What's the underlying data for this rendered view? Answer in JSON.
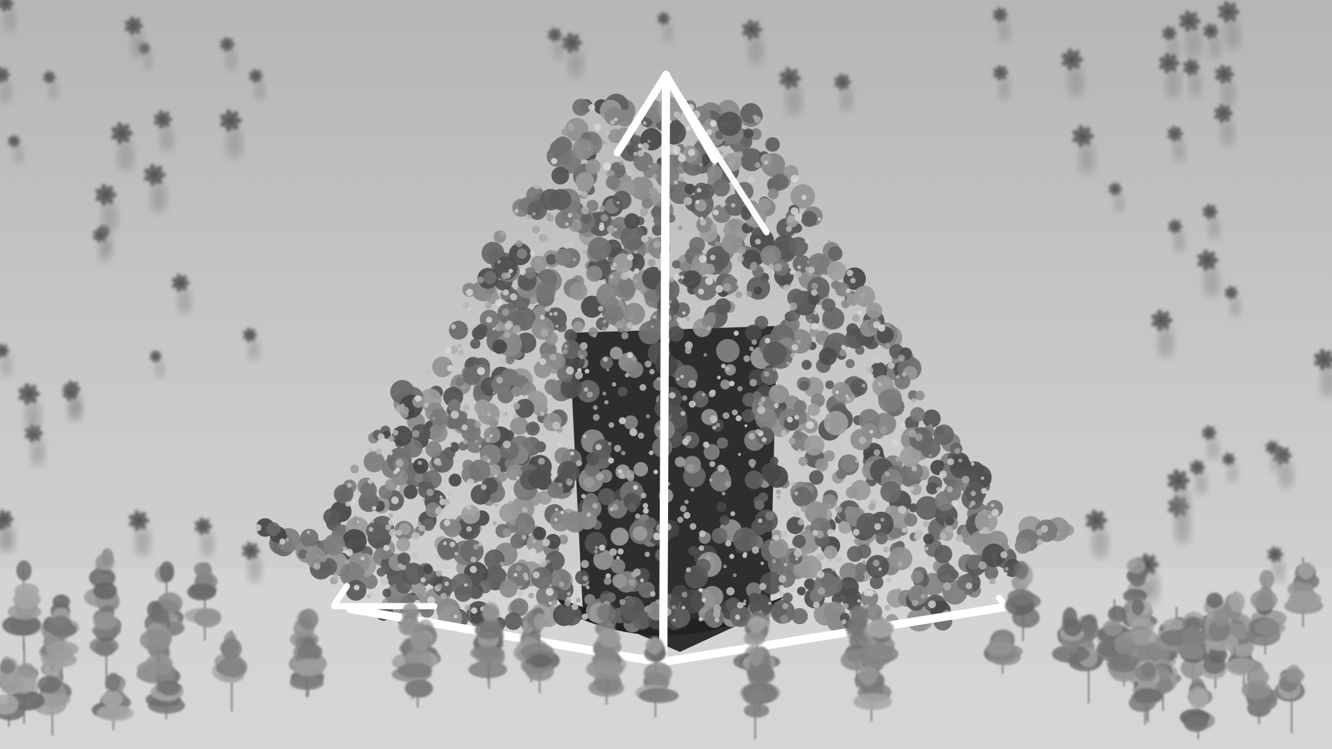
{
  "scene": {
    "subject": "tree-enclosed-pyramid",
    "palette": {
      "sky_top": "#b9b9b9",
      "sky_mid": "#c9c9c9",
      "ground": "#d2d2d2",
      "canopy_dark": "#4a4a4a",
      "canopy_mid": "#6e6e6e",
      "canopy_light": "#9a9a9a",
      "core_dark": "#2c2c2c",
      "sapling": "#7a7a7a",
      "outline": "#ffffff"
    }
  }
}
